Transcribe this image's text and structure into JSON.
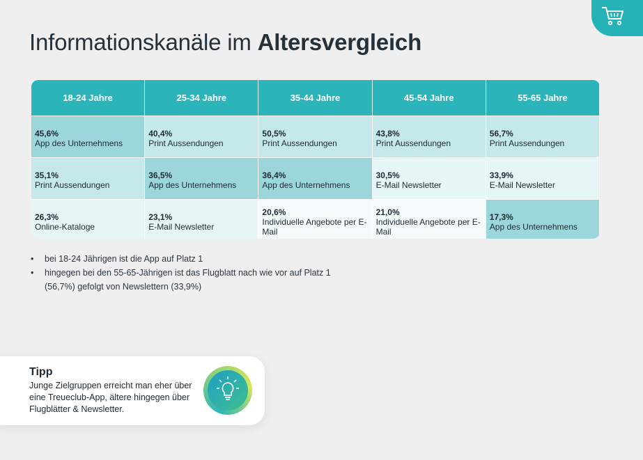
{
  "title": {
    "light": "Informationskanäle im ",
    "bold": "Altersvergleich"
  },
  "table": {
    "headers": [
      "18-24 Jahre",
      "25-34 Jahre",
      "35-44 Jahre",
      "45-54 Jahre",
      "55-65 Jahre"
    ],
    "rows": [
      [
        {
          "pct": "45,6%",
          "label": "App des Unternehmens"
        },
        {
          "pct": "40,4%",
          "label": "Print Aussendungen"
        },
        {
          "pct": "50,5%",
          "label": "Print Aussendungen"
        },
        {
          "pct": "43,8%",
          "label": "Print Aussendungen"
        },
        {
          "pct": "56,7%",
          "label": "Print Aussendungen"
        }
      ],
      [
        {
          "pct": "35,1%",
          "label": "Print Aussendungen"
        },
        {
          "pct": "36,5%",
          "label": "App des Unternehmens"
        },
        {
          "pct": "36,4%",
          "label": "App des Unternehmens"
        },
        {
          "pct": "30,5%",
          "label": "E-Mail Newsletter"
        },
        {
          "pct": "33,9%",
          "label": "E-Mail Newsletter"
        }
      ],
      [
        {
          "pct": "26,3%",
          "label": "Online-Kataloge"
        },
        {
          "pct": "23,1%",
          "label": "E-Mail Newsletter"
        },
        {
          "pct": "20,6%",
          "label": "Individuelle Angebote per E-Mail"
        },
        {
          "pct": "21,0%",
          "label": "Individuelle Angebote per E-Mail"
        },
        {
          "pct": "17,3%",
          "label": "App des Unternehmens"
        }
      ]
    ]
  },
  "bullets": [
    {
      "line1": "bei 18-24 Jährigen ist die App auf Platz 1",
      "line2": ""
    },
    {
      "line1": "hingegen bei den 55-65-Jährigen ist das Flugblatt nach wie vor auf Platz 1",
      "line2": "(56,7%)  gefolgt von Newslettern (33,9%)"
    }
  ],
  "tip": {
    "title": "Tipp",
    "text": "Junge Zielgruppen erreicht man eher über eine Treueclub-App, ältere hingegen über Flugblätter & Newsletter."
  },
  "icons": {
    "corner": "shopping-cart-icon",
    "tip": "lightbulb-icon"
  },
  "colors": {
    "accent": "#2bb5bb",
    "background": "#efefef"
  }
}
